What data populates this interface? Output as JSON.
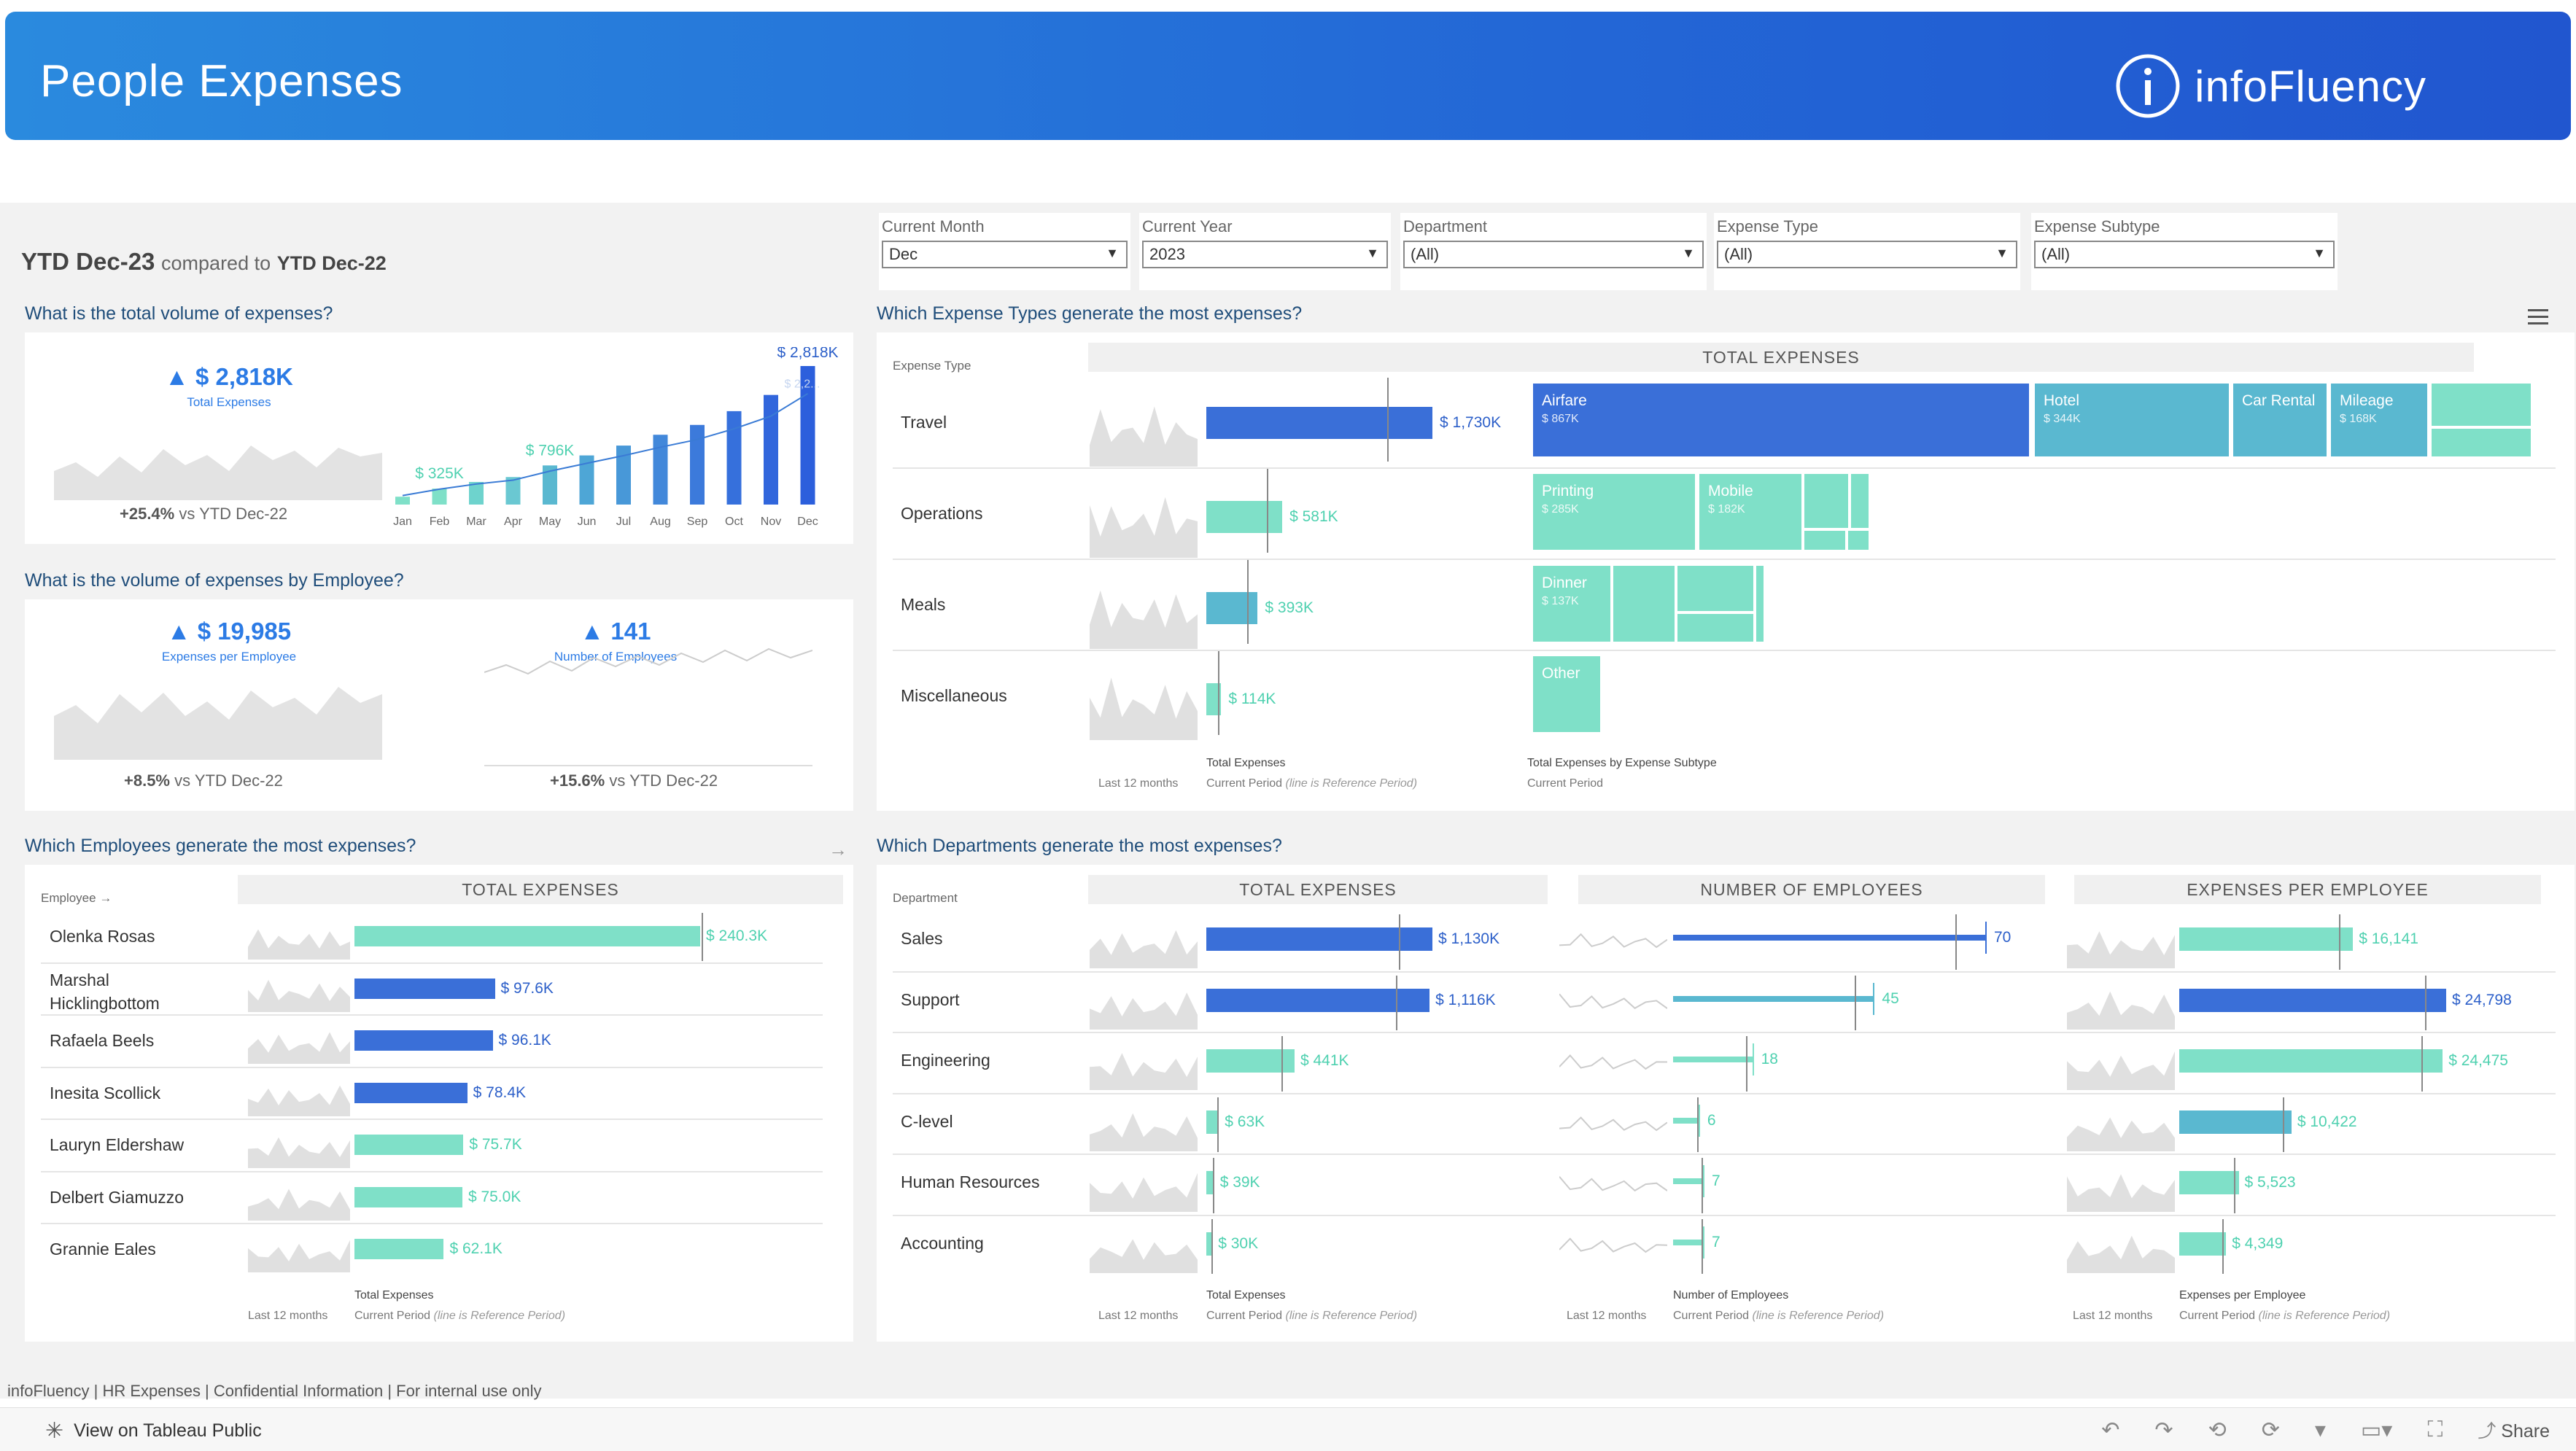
{
  "header": {
    "title": "People Expenses",
    "brand": "infoFluency"
  },
  "period": {
    "label": "YTD Dec-23",
    "compared_to_text": "compared to",
    "compared_label": "YTD Dec-22"
  },
  "filters": [
    {
      "label": "Current Month",
      "value": "Dec"
    },
    {
      "label": "Current Year",
      "value": "2023"
    },
    {
      "label": "Department",
      "value": "(All)"
    },
    {
      "label": "Expense Type",
      "value": "(All)"
    },
    {
      "label": "Expense Subtype",
      "value": "(All)"
    }
  ],
  "total_volume": {
    "question": "What is the total volume of expenses?",
    "kpi_value": "$ 2,818K",
    "kpi_label": "Total Expenses",
    "delta_pct": "+25.4%",
    "delta_text": "vs YTD Dec-22",
    "monthly": {
      "months": [
        "Jan",
        "Feb",
        "Mar",
        "Apr",
        "May",
        "Jun",
        "Jul",
        "Aug",
        "Sep",
        "Oct",
        "Nov",
        "Dec"
      ],
      "values": [
        160,
        325,
        460,
        560,
        796,
        1000,
        1200,
        1420,
        1620,
        1900,
        2230,
        2818
      ],
      "labels": {
        "first": "$ 325K",
        "mid": "$ 796K",
        "last": "$ 2,818K",
        "ref": "$ 2,2..."
      }
    }
  },
  "employee_volume": {
    "question": "What is the volume of expenses by Employee?",
    "kpi1_value": "$ 19,985",
    "kpi1_label": "Expenses per Employee",
    "kpi2_value": "141",
    "kpi2_label": "Number of Employees",
    "delta1_pct": "+8.5%",
    "delta1_text": "vs YTD Dec-22",
    "delta2_pct": "+15.6%",
    "delta2_text": "vs YTD Dec-22"
  },
  "expense_types": {
    "question": "Which Expense Types generate the most expenses?",
    "dim_label": "Expense Type",
    "header": "TOTAL EXPENSES",
    "rows": [
      {
        "name": "Travel",
        "value": 1730,
        "label": "$ 1,730K",
        "color": "#3a6fd8",
        "label_color": "#2c5fc9"
      },
      {
        "name": "Operations",
        "value": 581,
        "label": "$ 581K",
        "color": "#7fe0c8",
        "label_color": "#4fd1b0"
      },
      {
        "name": "Meals",
        "value": 393,
        "label": "$ 393K",
        "color": "#5ab8d0",
        "label_color": "#4fd1b0"
      },
      {
        "name": "Miscellaneous",
        "value": 114,
        "label": "$ 114K",
        "color": "#7fe0c8",
        "label_color": "#4fd1b0"
      }
    ],
    "subtypes": {
      "travel": [
        {
          "name": "Airfare",
          "value": "$ 867K"
        },
        {
          "name": "Hotel",
          "value": "$ 344K"
        },
        {
          "name": "Car Rental",
          "value": ""
        },
        {
          "name": "Mileage",
          "value": "$ 168K"
        }
      ],
      "operations": [
        {
          "name": "Printing",
          "value": "$ 285K"
        },
        {
          "name": "Mobile",
          "value": "$ 182K"
        }
      ],
      "meals": [
        {
          "name": "Dinner",
          "value": "$ 137K"
        }
      ],
      "misc": [
        {
          "name": "Other",
          "value": ""
        }
      ]
    },
    "foot_last12": "Last 12 months",
    "foot_total": "Total Expenses",
    "foot_current": "Current Period",
    "foot_ref": "(line is Reference Period)",
    "foot_subtype": "Total Expenses by Expense Subtype",
    "foot_subtype_period": "Current Period"
  },
  "employees": {
    "question": "Which Employees generate the most expenses?",
    "dim_label": "Employee",
    "header": "TOTAL EXPENSES",
    "rows": [
      {
        "name": "Olenka Rosas",
        "value": 240.3,
        "label": "$ 240.3K",
        "color": "#7fe0c8",
        "label_color": "#4fd1b0"
      },
      {
        "name": "Marshal Hicklingbottom",
        "value": 97.6,
        "label": "$ 97.6K",
        "color": "#3a6fd8",
        "label_color": "#2c5fc9"
      },
      {
        "name": "Rafaela Beels",
        "value": 96.1,
        "label": "$ 96.1K",
        "color": "#3a6fd8",
        "label_color": "#2c5fc9"
      },
      {
        "name": "Inesita Scollick",
        "value": 78.4,
        "label": "$ 78.4K",
        "color": "#3a6fd8",
        "label_color": "#2c5fc9"
      },
      {
        "name": "Lauryn Eldershaw",
        "value": 75.7,
        "label": "$ 75.7K",
        "color": "#7fe0c8",
        "label_color": "#4fd1b0"
      },
      {
        "name": "Delbert Giamuzzo",
        "value": 75.0,
        "label": "$ 75.0K",
        "color": "#7fe0c8",
        "label_color": "#4fd1b0"
      },
      {
        "name": "Grannie Eales",
        "value": 62.1,
        "label": "$ 62.1K",
        "color": "#7fe0c8",
        "label_color": "#4fd1b0"
      }
    ],
    "foot_last12": "Last 12 months",
    "foot_total": "Total Expenses",
    "foot_current": "Current Period",
    "foot_ref": "(line is Reference Period)"
  },
  "departments": {
    "question": "Which Departments generate the most expenses?",
    "dim_label": "Department",
    "header_total": "TOTAL EXPENSES",
    "header_emp": "NUMBER OF EMPLOYEES",
    "header_epe": "EXPENSES PER EMPLOYEE",
    "rows": [
      {
        "name": "Sales",
        "total": 1130,
        "total_label": "$ 1,130K",
        "total_color": "#3a6fd8",
        "emp": 70,
        "emp_label": "70",
        "emp_color": "#3a6fd8",
        "epe": 16141,
        "epe_label": "$ 16,141",
        "epe_color": "#7fe0c8"
      },
      {
        "name": "Support",
        "total": 1116,
        "total_label": "$ 1,116K",
        "total_color": "#3a6fd8",
        "emp": 45,
        "emp_label": "45",
        "emp_color": "#5ab8d0",
        "epe": 24798,
        "epe_label": "$ 24,798",
        "epe_color": "#3a6fd8"
      },
      {
        "name": "Engineering",
        "total": 441,
        "total_label": "$ 441K",
        "total_color": "#7fe0c8",
        "emp": 18,
        "emp_label": "18",
        "emp_color": "#7fe0c8",
        "epe": 24475,
        "epe_label": "$ 24,475",
        "epe_color": "#7fe0c8"
      },
      {
        "name": "C-level",
        "total": 63,
        "total_label": "$ 63K",
        "total_color": "#7fe0c8",
        "emp": 6,
        "emp_label": "6",
        "emp_color": "#7fe0c8",
        "epe": 10422,
        "epe_label": "$ 10,422",
        "epe_color": "#5ab8d0"
      },
      {
        "name": "Human Resources",
        "total": 39,
        "total_label": "$ 39K",
        "total_color": "#7fe0c8",
        "emp": 7,
        "emp_label": "7",
        "emp_color": "#7fe0c8",
        "epe": 5523,
        "epe_label": "$ 5,523",
        "epe_color": "#7fe0c8"
      },
      {
        "name": "Accounting",
        "total": 30,
        "total_label": "$ 30K",
        "total_color": "#7fe0c8",
        "emp": 7,
        "emp_label": "7",
        "emp_color": "#7fe0c8",
        "epe": 4349,
        "epe_label": "$ 4,349",
        "epe_color": "#7fe0c8"
      }
    ],
    "foot_last12": "Last 12 months",
    "foot_total": "Total Expenses",
    "foot_emp": "Number of Employees",
    "foot_epe": "Expenses per Employee",
    "foot_current": "Current Period",
    "foot_ref": "(line is Reference Period)"
  },
  "footer": {
    "text": "infoFluency | HR Expenses | Confidential Information | For internal use only"
  },
  "toolbar": {
    "view_label": "View on Tableau Public",
    "share_label": "Share"
  }
}
